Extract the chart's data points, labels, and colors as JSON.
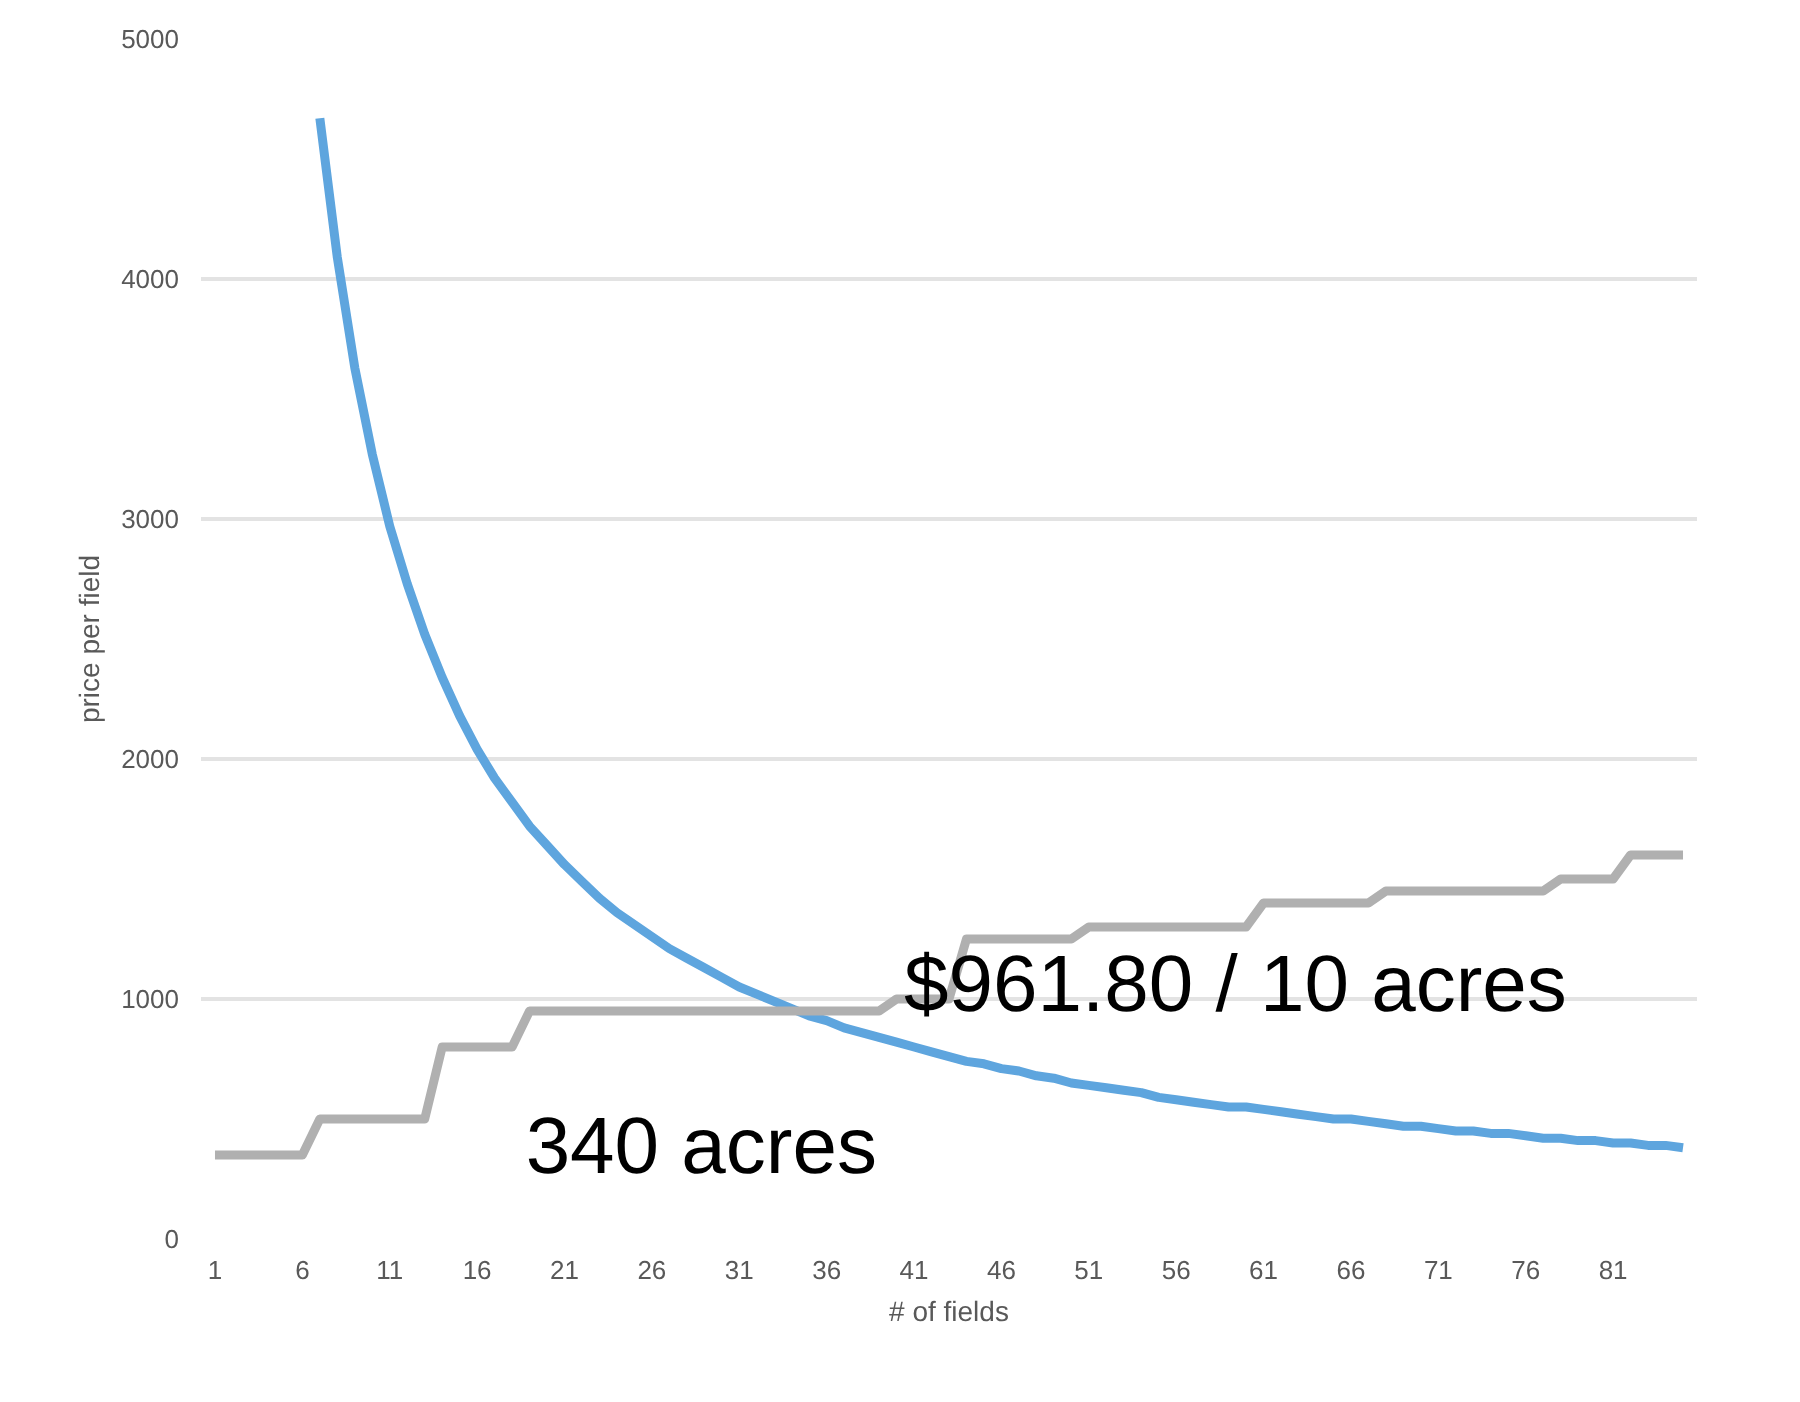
{
  "chart_data": {
    "type": "line",
    "xlabel": "# of fields",
    "ylabel": "price per field",
    "x": [
      1,
      2,
      3,
      4,
      5,
      6,
      7,
      8,
      9,
      10,
      11,
      12,
      13,
      14,
      15,
      16,
      17,
      18,
      19,
      20,
      21,
      22,
      23,
      24,
      25,
      26,
      27,
      28,
      29,
      30,
      31,
      32,
      33,
      34,
      35,
      36,
      37,
      38,
      39,
      40,
      41,
      42,
      43,
      44,
      45,
      46,
      47,
      48,
      49,
      50,
      51,
      52,
      53,
      54,
      55,
      56,
      57,
      58,
      59,
      60,
      61,
      62,
      63,
      64,
      65,
      66,
      67,
      68,
      69,
      70,
      71,
      72,
      73,
      74,
      75,
      76,
      77,
      78,
      79,
      80,
      81,
      82,
      83,
      84,
      85
    ],
    "series": [
      {
        "color": "#5ea5de",
        "values": [
          null,
          null,
          null,
          null,
          null,
          null,
          4670,
          4090,
          3630,
          3270,
          2970,
          2730,
          2520,
          2340,
          2180,
          2040,
          1920,
          1820,
          1720,
          1640,
          1560,
          1490,
          1420,
          1360,
          1310,
          1260,
          1210,
          1170,
          1130,
          1090,
          1050,
          1020,
          990,
          960,
          930,
          910,
          880,
          860,
          840,
          820,
          800,
          780,
          760,
          740,
          730,
          710,
          700,
          680,
          670,
          650,
          640,
          630,
          620,
          610,
          590,
          580,
          570,
          560,
          550,
          550,
          540,
          530,
          520,
          510,
          500,
          500,
          490,
          480,
          470,
          470,
          460,
          450,
          450,
          440,
          440,
          430,
          420,
          420,
          410,
          410,
          400,
          400,
          390,
          390,
          380
        ]
      },
      {
        "color": "#b0b0b0",
        "values": [
          350,
          350,
          350,
          350,
          350,
          350,
          500,
          500,
          500,
          500,
          500,
          500,
          500,
          800,
          800,
          800,
          800,
          800,
          950,
          950,
          950,
          950,
          950,
          950,
          950,
          950,
          950,
          950,
          950,
          950,
          950,
          950,
          950,
          950,
          950,
          950,
          950,
          950,
          950,
          1000,
          1000,
          1000,
          1000,
          1250,
          1250,
          1250,
          1250,
          1250,
          1250,
          1250,
          1300,
          1300,
          1300,
          1300,
          1300,
          1300,
          1300,
          1300,
          1300,
          1300,
          1400,
          1400,
          1400,
          1400,
          1400,
          1400,
          1400,
          1450,
          1450,
          1450,
          1450,
          1450,
          1450,
          1450,
          1450,
          1450,
          1450,
          1500,
          1500,
          1500,
          1500,
          1600,
          1600,
          1600,
          1600
        ]
      }
    ],
    "xlim": [
      0.2,
      85.8
    ],
    "xticks": [
      1,
      6,
      11,
      16,
      21,
      26,
      31,
      36,
      41,
      46,
      51,
      56,
      61,
      66,
      71,
      76,
      81
    ],
    "ylim": [
      0,
      5000
    ],
    "yticks": [
      0,
      1000,
      2000,
      3000,
      4000,
      5000
    ],
    "grid": "y",
    "marker": "none",
    "line_style": "solid",
    "annotations": [
      "$961.80 / 10 acres",
      "340 acres"
    ]
  }
}
